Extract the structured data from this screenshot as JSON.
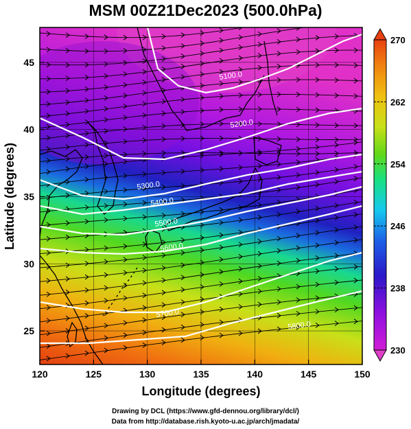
{
  "title": "MSM 00Z21Dec2023 (500.0hPa)",
  "x_axis": {
    "label": "Longitude (degrees)",
    "range": [
      120,
      150
    ],
    "ticks": [
      {
        "value": 120,
        "label": "120"
      },
      {
        "value": 125,
        "label": "125"
      },
      {
        "value": 130,
        "label": "130"
      },
      {
        "value": 135,
        "label": "135"
      },
      {
        "value": 140,
        "label": "140"
      },
      {
        "value": 145,
        "label": "145"
      },
      {
        "value": 150,
        "label": "150"
      }
    ]
  },
  "y_axis": {
    "label": "Latitude  (degrees)",
    "range": [
      22.5,
      47.6
    ],
    "ticks": [
      {
        "value": 25,
        "label": "25"
      },
      {
        "value": 30,
        "label": "30"
      },
      {
        "value": 35,
        "label": "35"
      },
      {
        "value": 40,
        "label": "40"
      },
      {
        "value": 45,
        "label": "45"
      }
    ]
  },
  "colorbar": {
    "range": [
      230,
      270
    ],
    "labels": [
      {
        "value": 270,
        "label": "270"
      },
      {
        "value": 262,
        "label": "262"
      },
      {
        "value": 254,
        "label": "254"
      },
      {
        "value": 246,
        "label": "246"
      },
      {
        "value": 238,
        "label": "238"
      },
      {
        "value": 230,
        "label": "230"
      }
    ],
    "colors": [
      "#d01cd6",
      "#8f10e0",
      "#2b18c8",
      "#1c5fe6",
      "#16c8f0",
      "#18e080",
      "#60d818",
      "#c8e018",
      "#f0c010",
      "#f08010",
      "#e84010"
    ]
  },
  "contours": [
    {
      "label": "5100.0"
    },
    {
      "label": "5200.0"
    },
    {
      "label": "5300.0"
    },
    {
      "label": "5400.0"
    },
    {
      "label": "5500.0"
    },
    {
      "label": "5600.0"
    },
    {
      "label": "5700.0"
    },
    {
      "label": "5800.0"
    }
  ],
  "credits": {
    "line1": "Drawing by DCL (https://www.gfd-dennou.org/library/dcl/)",
    "line2": "Data from http://database.rish.kyoto-u.ac.jp/arch/jmadata/"
  }
}
